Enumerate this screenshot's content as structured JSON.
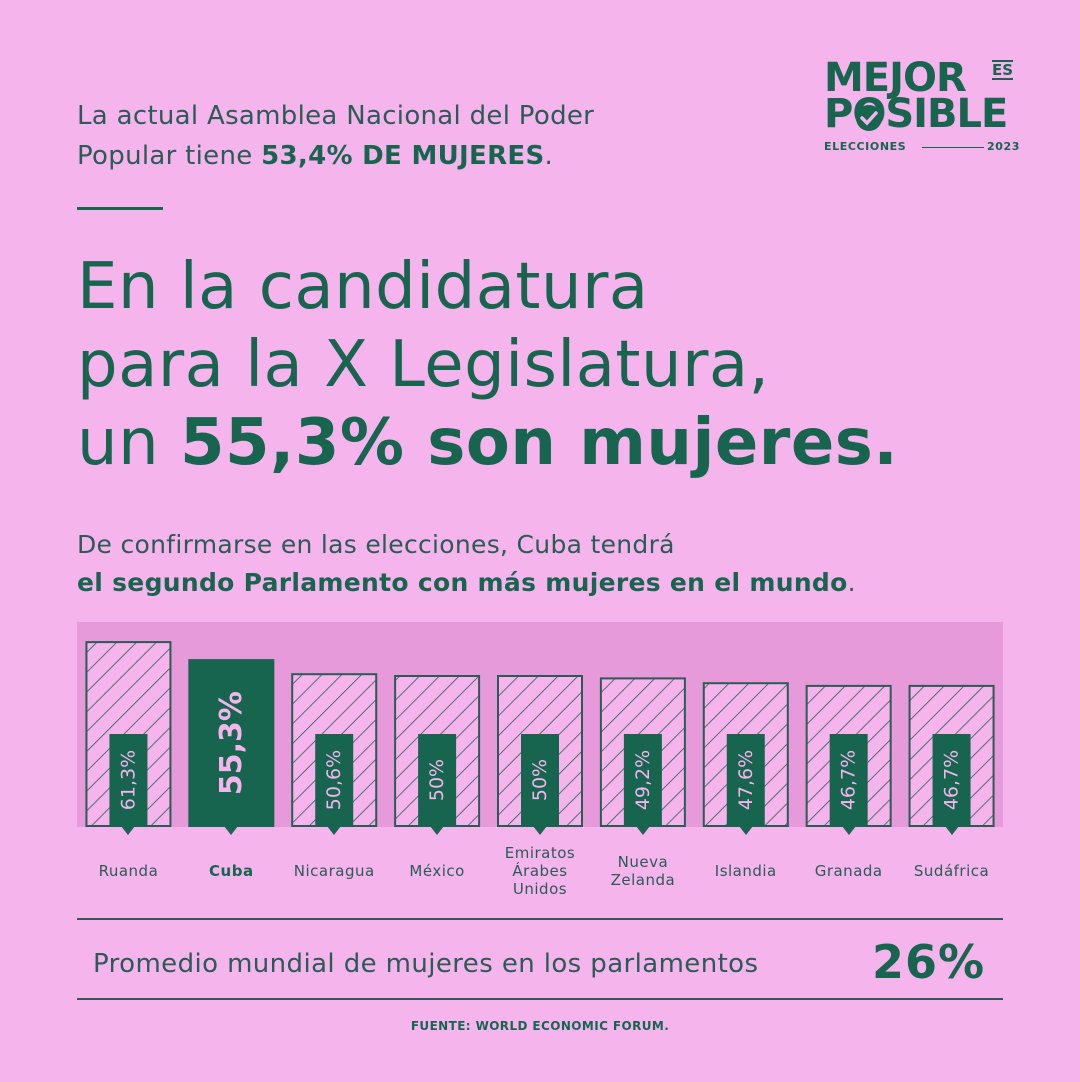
{
  "logo": {
    "line1": "MEJOR",
    "es": "ES",
    "line2": "POSIBLE",
    "elecciones": "ELECCIONES",
    "year": "2023"
  },
  "intro": {
    "line1": "La actual Asamblea Nacional del Poder",
    "line2_prefix": "Popular tiene ",
    "line2_bold": "53,4% DE MUJERES",
    "line2_suffix": "."
  },
  "headline": {
    "line1": "En la candidatura",
    "line2": "para la X Legislatura,",
    "line3_prefix": "un ",
    "line3_bold": "55,3% son mujeres."
  },
  "sub": {
    "line1": "De confirmarse en las elecciones, Cuba tendrá",
    "line2_bold": "el segundo Parlamento con más mujeres en el mundo",
    "line2_suffix": "."
  },
  "chart_data": {
    "type": "bar",
    "categories": [
      "Ruanda",
      "Cuba",
      "Nicaragua",
      "México",
      "Emiratos Árabes Unidos",
      "Nueva Zelanda",
      "Islandia",
      "Granada",
      "Sudáfrica"
    ],
    "category_lines": [
      [
        "Ruanda"
      ],
      [
        "Cuba"
      ],
      [
        "Nicaragua"
      ],
      [
        "México"
      ],
      [
        "Emiratos",
        "Árabes",
        "Unidos"
      ],
      [
        "Nueva",
        "Zelanda"
      ],
      [
        "Islandia"
      ],
      [
        "Granada"
      ],
      [
        "Sudáfrica"
      ]
    ],
    "values": [
      61.3,
      55.3,
      50.6,
      50,
      50,
      49.2,
      47.6,
      46.7,
      46.7
    ],
    "value_labels": [
      "61,3%",
      "55,3%",
      "50,6%",
      "50%",
      "50%",
      "49,2%",
      "47,6%",
      "46,7%",
      "46,7%"
    ],
    "highlight": "Cuba",
    "colors": {
      "bar": "#17654f",
      "hatch_outline": "#2b5b55",
      "hatch_fill": "#f5b4ec",
      "label": "#f5b4ec"
    }
  },
  "average": {
    "label": "Promedio mundial de mujeres en los parlamentos",
    "value": "26%"
  },
  "source": "FUENTE: WORLD ECONOMIC FORUM."
}
